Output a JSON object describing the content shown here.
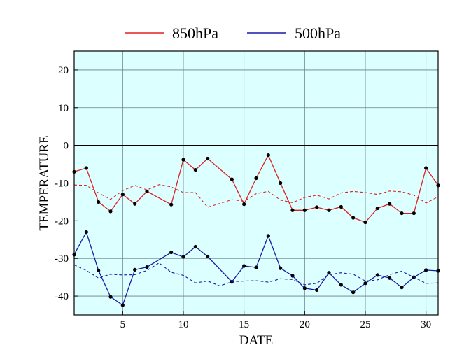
{
  "chart_data": {
    "type": "line",
    "xlabel": "DATE",
    "ylabel": "TEMPERATURE",
    "xlim": [
      1,
      31
    ],
    "ylim": [
      -45,
      25
    ],
    "x_ticks": [
      5,
      10,
      15,
      20,
      25,
      30
    ],
    "y_ticks": [
      -40,
      -30,
      -20,
      -10,
      0,
      10,
      20
    ],
    "grid": true,
    "zero_line": true,
    "background_color": "#dcffff",
    "legend_position": "top-center",
    "x": [
      1,
      2,
      3,
      4,
      5,
      6,
      7,
      8,
      9,
      10,
      11,
      12,
      13,
      14,
      15,
      16,
      17,
      18,
      19,
      20,
      21,
      22,
      23,
      24,
      25,
      26,
      27,
      28,
      29,
      30,
      31
    ],
    "series": [
      {
        "name": "850hPa",
        "color": "#e02020",
        "style": "solid",
        "markers": true,
        "values": [
          -7,
          -6,
          -15,
          -17.5,
          -13,
          -15.5,
          -12.2,
          null,
          -15.7,
          -3.8,
          -6.5,
          -3.5,
          null,
          -9,
          -15.6,
          -8.7,
          -2.6,
          -10,
          -17.2,
          -17.2,
          -16.4,
          -17.2,
          -16.3,
          -19.2,
          -20.4,
          -16.7,
          -15.5,
          -18,
          -18,
          -6,
          -10.6
        ]
      },
      {
        "name": "500hPa",
        "color": "#1a1aa8",
        "style": "solid",
        "markers": true,
        "values": [
          -29,
          -23,
          -33.2,
          -40.2,
          -42.4,
          -33,
          -32.3,
          null,
          -28.4,
          -29.6,
          -26.9,
          -29.5,
          null,
          -36.2,
          -32,
          -32.4,
          -24,
          -32.6,
          -34.6,
          -37.9,
          -38.4,
          -33.8,
          -37,
          -39,
          -36.6,
          -34.4,
          -35.2,
          -37.7,
          -35,
          -33.1,
          -33.3
        ]
      },
      {
        "name": "",
        "color": "#e02020",
        "style": "dashed",
        "markers": false,
        "values": [
          -10.5,
          -10.6,
          -12.6,
          -14.3,
          -12,
          -10.6,
          -11.8,
          -10.4,
          -11,
          -12.5,
          -12.5,
          -16.4,
          -15.4,
          -14.4,
          -14.8,
          -12.8,
          -12.2,
          -14.5,
          -15.2,
          -13.8,
          -13.2,
          -14.2,
          -12.6,
          -12.2,
          -12.5,
          -13,
          -12.1,
          -12.3,
          -13.2,
          -15.3,
          -13.6
        ]
      },
      {
        "name": "",
        "color": "#1a1aa8",
        "style": "dashed",
        "markers": false,
        "values": [
          -31.7,
          -33.2,
          -35.2,
          -34.2,
          -34.4,
          -34.3,
          -33.2,
          -31.2,
          -33.7,
          -34.5,
          -36.5,
          -36,
          -37.3,
          -36.2,
          -36,
          -35.9,
          -36.3,
          -35.4,
          -35.6,
          -37,
          -36.6,
          -34.3,
          -33.8,
          -34.2,
          -36,
          -35.7,
          -34.3,
          -33.4,
          -35,
          -36.6,
          -36.5
        ]
      }
    ]
  }
}
